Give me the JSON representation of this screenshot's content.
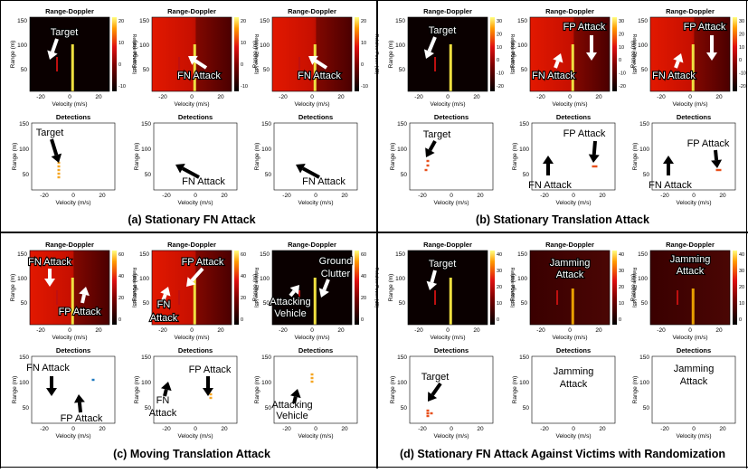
{
  "figure": {
    "common": {
      "rd_title": "Range-Doppler",
      "det_title": "Detections",
      "xlabel": "Velocity (m/s)",
      "ylabel": "Range (m)",
      "colorbar_label": "Relative Power (dB)",
      "x_ticks": [
        "-20",
        "0",
        "20"
      ],
      "y_ticks": [
        "150",
        "100",
        "50"
      ],
      "det_y_ticks": [
        "150",
        "100",
        "50"
      ]
    },
    "quadrants": [
      {
        "caption": "(a) Stationary FN Attack",
        "cbar_ticks": [
          "20",
          "10",
          "0",
          "-10"
        ],
        "rd": [
          {
            "labels": [
              "Target"
            ],
            "bg": "dark"
          },
          {
            "labels": [
              "FN Attack"
            ],
            "bg": "hot"
          },
          {
            "labels": [
              "FN Attack"
            ],
            "bg": "hot"
          }
        ],
        "det": [
          {
            "labels": [
              "Target"
            ]
          },
          {
            "labels": [
              "FN Attack"
            ]
          },
          {
            "labels": [
              "FN Attack"
            ]
          }
        ]
      },
      {
        "caption": "(b) Stationary Translation Attack",
        "cbar_ticks": [
          "30",
          "20",
          "10",
          "0",
          "-10",
          "-20"
        ],
        "rd": [
          {
            "labels": [
              "Target"
            ],
            "bg": "dark"
          },
          {
            "labels": [
              "FP Attack",
              "FN Attack"
            ],
            "bg": "hot"
          },
          {
            "labels": [
              "FP Attack",
              "FN Attack"
            ],
            "bg": "hot"
          }
        ],
        "det": [
          {
            "labels": [
              "Target"
            ]
          },
          {
            "labels": [
              "FP Attack",
              "FN Attack"
            ]
          },
          {
            "labels": [
              "FP Attack",
              "FN Attack"
            ]
          }
        ]
      },
      {
        "caption": "(c) Moving Translation Attack",
        "cbar_ticks": [
          "60",
          "40",
          "20",
          "0"
        ],
        "rd": [
          {
            "labels": [
              "FN Attack",
              "FP Attack"
            ],
            "bg": "hot"
          },
          {
            "labels": [
              "FP Attack",
              "FN",
              "Attack"
            ],
            "bg": "hot"
          },
          {
            "labels": [
              "Ground",
              "Clutter",
              "Attacking",
              "Vehicle"
            ],
            "bg": "dark"
          }
        ],
        "det": [
          {
            "labels": [
              "FN Attack",
              "FP Attack"
            ]
          },
          {
            "labels": [
              "FP Attack",
              "FN",
              "Attack"
            ]
          },
          {
            "labels": [
              "Attacking",
              "Vehicle"
            ]
          }
        ]
      },
      {
        "caption": "(d) Stationary FN Attack Against Victims with Randomization",
        "cbar_ticks": [
          "40",
          "30",
          "20",
          "10",
          "0"
        ],
        "rd": [
          {
            "labels": [
              "Target"
            ],
            "bg": "dark"
          },
          {
            "labels": [
              "Jamming",
              "Attack"
            ],
            "bg": "maroon"
          },
          {
            "labels": [
              "Jamming",
              "Attack"
            ],
            "bg": "maroon"
          }
        ],
        "det": [
          {
            "labels": [
              "Target"
            ]
          },
          {
            "labels": [
              "Jamming",
              "Attack"
            ]
          },
          {
            "labels": [
              "Jamming",
              "Attack"
            ]
          }
        ]
      }
    ]
  }
}
